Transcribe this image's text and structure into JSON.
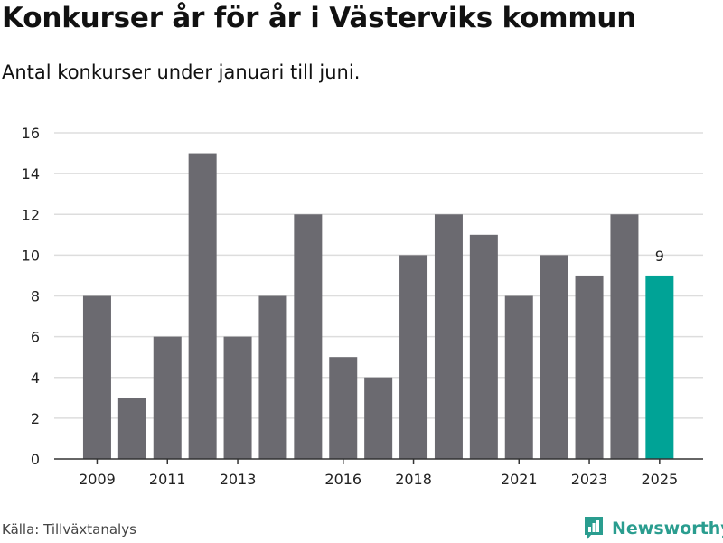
{
  "title": "Konkurser år för år i Västerviks kommun",
  "subtitle": "Antal konkurser under januari till juni.",
  "source": "Källa: Tillväxtanalys",
  "logo": {
    "text": "Newsworthy",
    "icon": "newsworthy-logo-icon"
  },
  "colors": {
    "bar": "#6b6a70",
    "highlight": "#00a396",
    "grid": "#dddddd",
    "axis": "#333333",
    "brand": "#2a9d8f"
  },
  "chart_data": {
    "type": "bar",
    "categories": [
      "2009",
      "2010",
      "2011",
      "2012",
      "2013",
      "2014",
      "2015",
      "2016",
      "2017",
      "2018",
      "2019",
      "2020",
      "2021",
      "2022",
      "2023",
      "2024",
      "2025"
    ],
    "values": [
      8,
      3,
      6,
      15,
      6,
      8,
      12,
      5,
      4,
      10,
      12,
      11,
      8,
      10,
      9,
      12,
      9
    ],
    "x_tick_labels": [
      {
        "category": "2009",
        "label": "2009"
      },
      {
        "category": "2011",
        "label": "2011"
      },
      {
        "category": "2013",
        "label": "2013"
      },
      {
        "category": "2016",
        "label": "2016"
      },
      {
        "category": "2018",
        "label": "2018"
      },
      {
        "category": "2021",
        "label": "2021"
      },
      {
        "category": "2023",
        "label": "2023"
      },
      {
        "category": "2025",
        "label": "2025"
      }
    ],
    "y_ticks": [
      0,
      2,
      4,
      6,
      8,
      10,
      12,
      14,
      16
    ],
    "ylim": [
      0,
      16
    ],
    "highlight": {
      "category": "2025",
      "label": "9"
    },
    "grid": true,
    "xlabel": "",
    "ylabel": ""
  }
}
